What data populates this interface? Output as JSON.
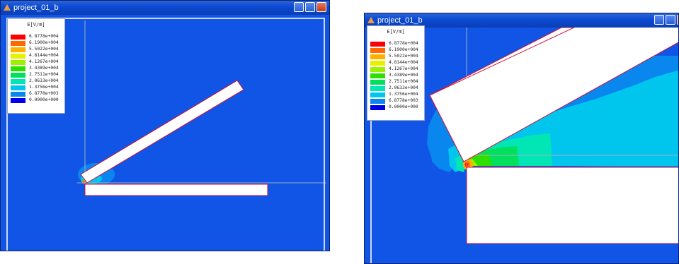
{
  "window_title": "project_01_b",
  "legend": {
    "title": "E[V/m]",
    "entries": [
      {
        "label": "6.8778e+004",
        "color": "#ff0000"
      },
      {
        "label": "6.1900e+004",
        "color": "#ff6a00"
      },
      {
        "label": "5.5022e+004",
        "color": "#ffb000"
      },
      {
        "label": "4.8144e+004",
        "color": "#e6f000"
      },
      {
        "label": "4.1267e+004",
        "color": "#9cf000"
      },
      {
        "label": "3.4389e+004",
        "color": "#2ee000"
      },
      {
        "label": "2.7511e+004",
        "color": "#00e05c"
      },
      {
        "label": "2.0633e+004",
        "color": "#00e6b4"
      },
      {
        "label": "1.3756e+004",
        "color": "#00c6ee"
      },
      {
        "label": "6.8778e+003",
        "color": "#0a86ef"
      },
      {
        "label": "0.0000e+000",
        "color": "#0000e6"
      }
    ]
  },
  "colors": {
    "background_field": "#1155e6",
    "title_bar": "#0a4ad1",
    "conductor_fill": "#ffffff",
    "conductor_edge": "#d0103a"
  },
  "icons": [
    "triangle-app-icon",
    "minimize-icon",
    "maximize-icon",
    "close-icon"
  ]
}
